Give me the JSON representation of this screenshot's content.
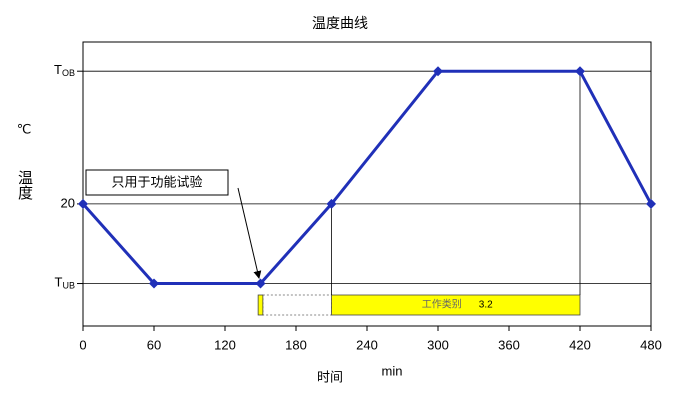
{
  "chart_data": {
    "type": "line",
    "title": "温度曲线",
    "x": [
      0,
      60,
      150,
      210,
      300,
      420,
      480
    ],
    "series": [
      {
        "color": "#2030b8",
        "values": [
          20,
          -40,
          -40,
          20,
          120,
          120,
          20
        ]
      }
    ],
    "xlim": [
      0,
      480
    ],
    "xticks": [
      0,
      60,
      120,
      180,
      240,
      300,
      360,
      420,
      480
    ],
    "ylim": [
      -72,
      142
    ],
    "yticks": [
      {
        "value": -40,
        "label": "TUB"
      },
      20,
      {
        "value": 120,
        "label": "TOB"
      }
    ],
    "x_label": "时间",
    "x_unit": "min",
    "y_label": "温度",
    "y_unit": "℃",
    "grid": true,
    "annotation": "只用于功能试验",
    "bands": [
      {
        "start": 148,
        "end": 152,
        "color": "#ffff00"
      },
      {
        "start": 210,
        "end": 420,
        "color": "#ffff00",
        "label": "工作类别",
        "value_label": "3.2"
      }
    ]
  }
}
